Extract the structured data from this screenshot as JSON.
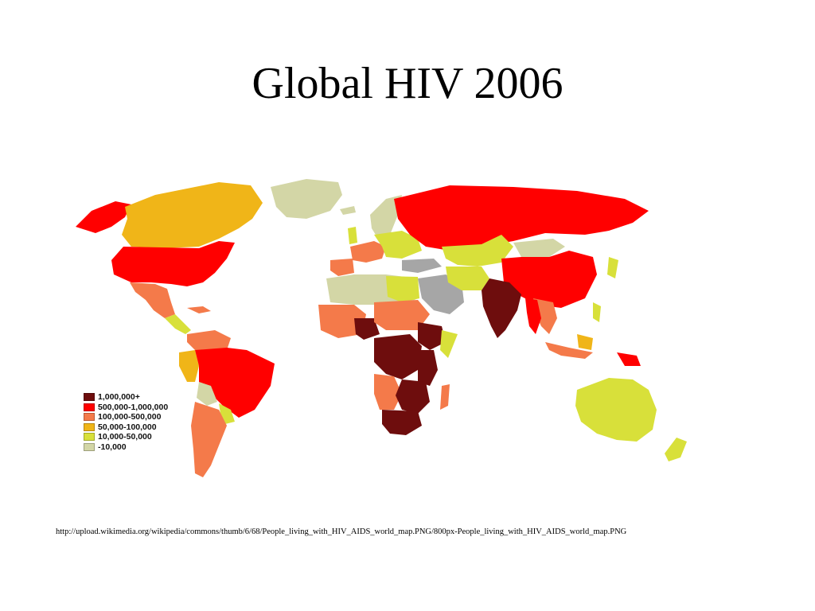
{
  "slide": {
    "title": "Global HIV 2006"
  },
  "map": {
    "colors": {
      "very_high": "#6e0d0d",
      "high": "#ff0000",
      "medium": "#f47a4a",
      "low_medium": "#f0b518",
      "low": "#d8e03a",
      "very_low": "#d3d6a6",
      "no_data": "#a6a6a6"
    }
  },
  "legend": {
    "items": [
      {
        "label": "1,000,000+",
        "color": "#6e0d0d"
      },
      {
        "label": "500,000-1,000,000",
        "color": "#ff0000"
      },
      {
        "label": "100,000-500,000",
        "color": "#f47a4a"
      },
      {
        "label": "50,000-100,000",
        "color": "#f0b518"
      },
      {
        "label": "10,000-50,000",
        "color": "#d8e03a"
      },
      {
        "label": "-10,000",
        "color": "#d3d6a6"
      }
    ]
  },
  "source": {
    "url": "http://upload.wikimedia.org/wikipedia/commons/thumb/6/68/People_living_with_HIV_AIDS_world_map.PNG/800px-People_living_with_HIV_AIDS_world_map.PNG"
  }
}
